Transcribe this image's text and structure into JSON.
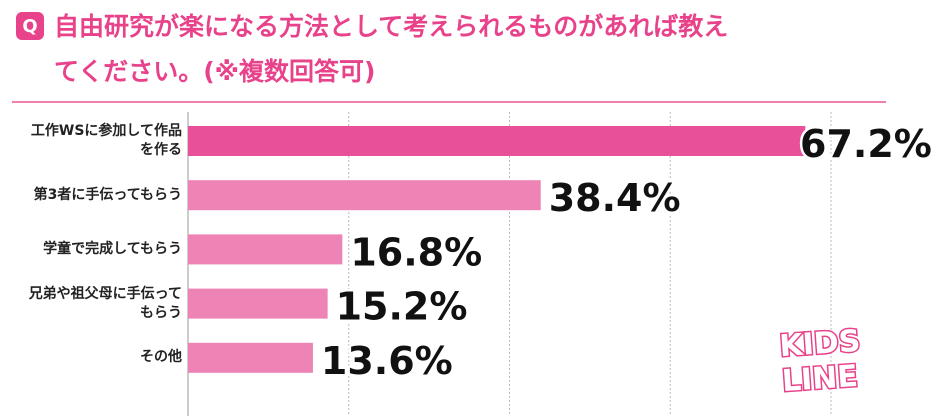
{
  "chart_data": {
    "type": "barh",
    "badge": "Q",
    "title": [
      "自由研究が楽になる方法として考えられるものがあれば教え",
      "てください。(※複数回答可)"
    ],
    "categories": [
      "工作WSに参加して作品を作る",
      "第3者に手伝ってもらう",
      "学童で完成してもらう",
      "兄弟や祖父母に手伝ってもらう",
      "その他"
    ],
    "values": [
      67.2,
      38.4,
      16.8,
      15.2,
      13.6
    ],
    "value_labels": [
      "67.2%",
      "38.4%",
      "16.8%",
      "15.2%",
      "13.6%"
    ],
    "colors": [
      "#e8509a",
      "#ee83b6",
      "#ee83b6",
      "#ee83b6",
      "#ee83b6"
    ],
    "xlim": [
      0,
      70
    ],
    "xticks": [
      0,
      17.5,
      35,
      52.5,
      70
    ],
    "grid": true,
    "logo": [
      "KIDS",
      "LINE"
    ]
  }
}
